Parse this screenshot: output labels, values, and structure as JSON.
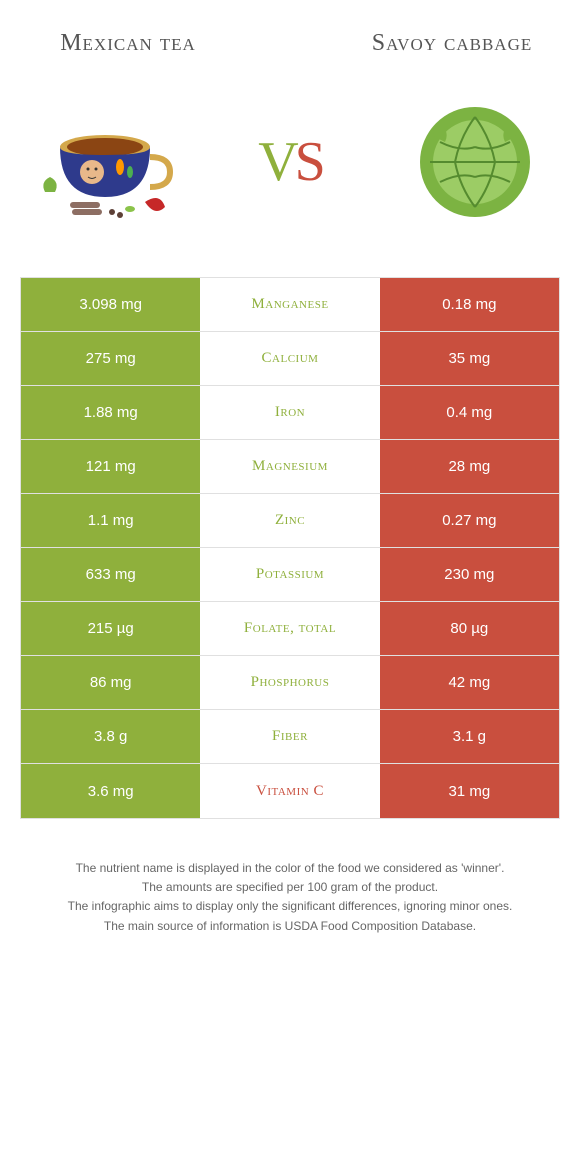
{
  "left_title": "Mexican tea",
  "right_title": "Savoy cabbage",
  "vs_v": "V",
  "vs_s": "S",
  "colors": {
    "left_bg": "#8fb03c",
    "right_bg": "#c94f3e",
    "mid_left_text": "#8fb03c",
    "mid_right_text": "#c94f3e"
  },
  "rows": [
    {
      "left": "3.098 mg",
      "nutrient": "Manganese",
      "right": "0.18 mg",
      "winner": "left"
    },
    {
      "left": "275 mg",
      "nutrient": "Calcium",
      "right": "35 mg",
      "winner": "left"
    },
    {
      "left": "1.88 mg",
      "nutrient": "Iron",
      "right": "0.4 mg",
      "winner": "left"
    },
    {
      "left": "121 mg",
      "nutrient": "Magnesium",
      "right": "28 mg",
      "winner": "left"
    },
    {
      "left": "1.1 mg",
      "nutrient": "Zinc",
      "right": "0.27 mg",
      "winner": "left"
    },
    {
      "left": "633 mg",
      "nutrient": "Potassium",
      "right": "230 mg",
      "winner": "left"
    },
    {
      "left": "215 µg",
      "nutrient": "Folate, total",
      "right": "80 µg",
      "winner": "left"
    },
    {
      "left": "86 mg",
      "nutrient": "Phosphorus",
      "right": "42 mg",
      "winner": "left"
    },
    {
      "left": "3.8 g",
      "nutrient": "Fiber",
      "right": "3.1 g",
      "winner": "left"
    },
    {
      "left": "3.6 mg",
      "nutrient": "Vitamin C",
      "right": "31 mg",
      "winner": "right"
    }
  ],
  "footer_lines": [
    "The nutrient name is displayed in the color of the food we considered as 'winner'.",
    "The amounts are specified per 100 gram of the product.",
    "The infographic aims to display only the significant differences, ignoring minor ones.",
    "The main source of information is USDA Food Composition Database."
  ]
}
